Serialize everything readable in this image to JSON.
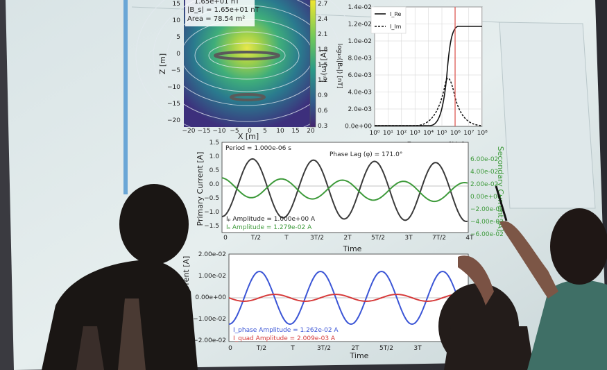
{
  "field_panel": {
    "b_line1": "1.65e+01 nT",
    "b_line2": "|B_s| = 1.65e+01 nT",
    "area": "Area = 78.54 m²",
    "ylabel": "Z [m]",
    "xlabel": "X [m]",
    "xticks": [
      "−20",
      "−15",
      "−10",
      "−5",
      "0",
      "5",
      "10",
      "15",
      "20"
    ],
    "yticks": [
      "15",
      "10",
      "5",
      "0",
      "−5",
      "−10",
      "−15",
      "−20"
    ],
    "colorbar_label": "log₁₀(|Bₛ|) [nT]",
    "colorbar_ticks": [
      "2.7",
      "2.4",
      "2.1",
      "1.8",
      "1.5",
      "1.2",
      "0.9",
      "0.6",
      "0.3"
    ]
  },
  "freq_panel": {
    "ylabel": "Iₘ(ω) [A]",
    "xlabel": "Frequency [Hz]",
    "yticks": [
      "1.4e-02",
      "1.2e-02",
      "1.0e-02",
      "8.0e-03",
      "6.0e-03",
      "4.0e-03",
      "2.0e-03",
      "0.0e+00"
    ],
    "xticks": [
      "10⁰",
      "10¹",
      "10²",
      "10³",
      "10⁴",
      "10⁵",
      "10⁶",
      "10⁷",
      "10⁸"
    ],
    "legend": [
      "I_Re",
      "I_Im"
    ]
  },
  "primary_panel": {
    "period": "Period = 1.000e-06 s",
    "phase_lag": "Phase Lag (φ) = 171.0°",
    "ylabel": "Primary Current [A]",
    "ylabel_right": "Secondary Current [A]",
    "yticks": [
      "1.5",
      "1.0",
      "0.5",
      "0.0",
      "−0.5",
      "−1.0",
      "−1.5"
    ],
    "yticks_right": [
      "6.00e-02",
      "4.00e-02",
      "2.00e-02",
      "0.00e+00",
      "−2.00e-02",
      "−4.00e-02",
      "−6.00e-02"
    ],
    "xticks": [
      "0",
      "T/2",
      "T",
      "3T/2",
      "2T",
      "5T/2",
      "3T",
      "7T/2",
      "4T"
    ],
    "xlabel": "Time",
    "amp1": "Iₚ Amplitude = 1.000e+00 A",
    "amp2": "Iₛ Amplitude = 1.279e-02 A"
  },
  "secondary_panel": {
    "ylabel": "Secondary Current [A]",
    "yticks": [
      "2.00e-02",
      "1.00e-02",
      "0.00e+00",
      "−1.00e-02",
      "−2.00e-02"
    ],
    "xticks": [
      "0",
      "T/2",
      "T",
      "3T/2",
      "2T",
      "5T/2",
      "3T"
    ],
    "xlabel": "Time",
    "amp1": "I_phase Amplitude = 1.262e-02 A",
    "amp2": "I_quad Amplitude = 2.009e-03 A"
  }
}
